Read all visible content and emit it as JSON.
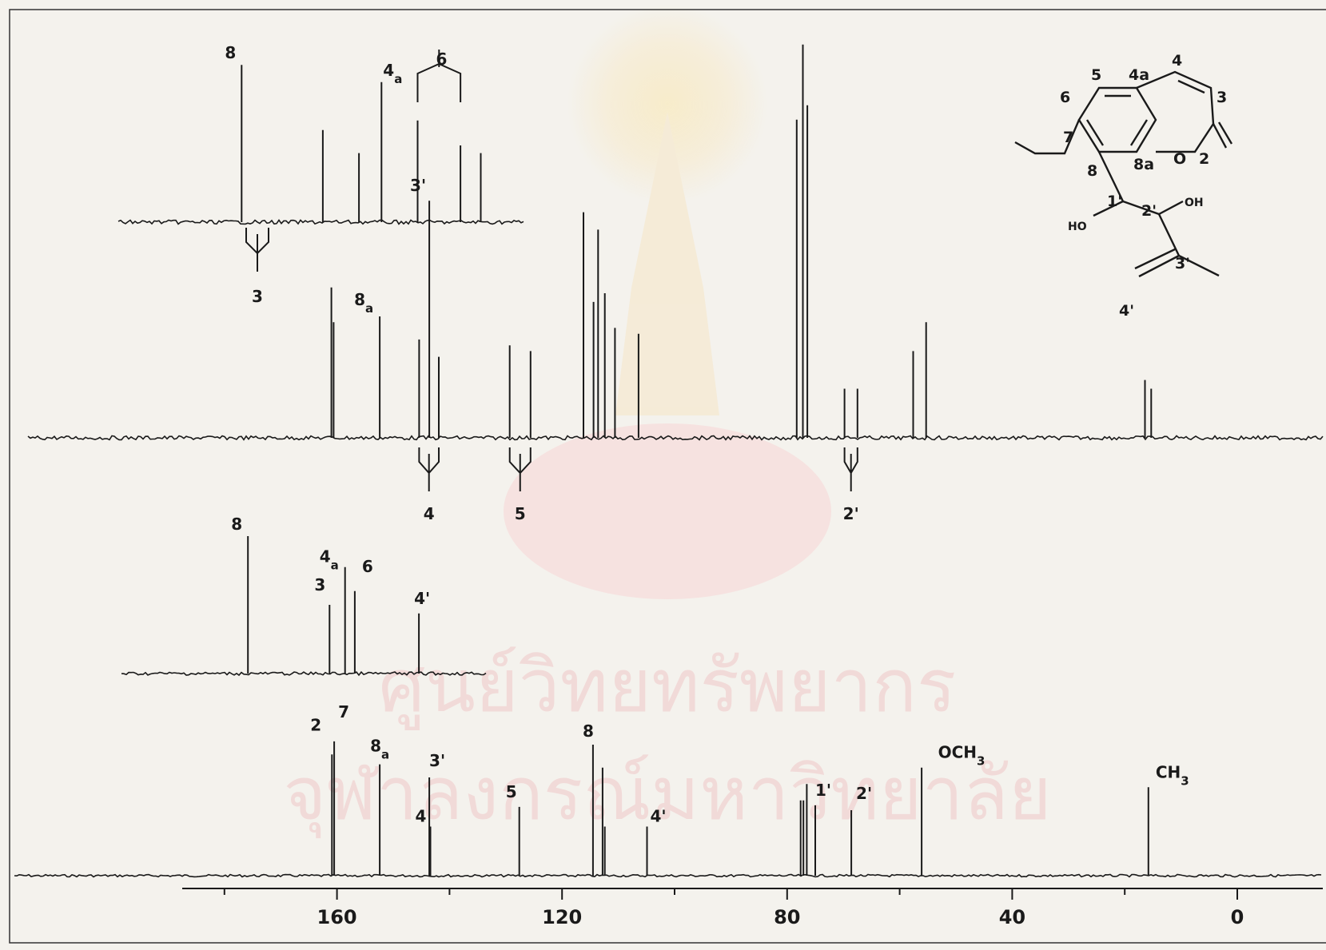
{
  "chart_data": {
    "type": "nmr-spectrum",
    "title": "",
    "xlabel": "",
    "xlim": [
      180,
      0
    ],
    "xaxis": {
      "reversed": true,
      "ticks": [
        160,
        120,
        80,
        40,
        0
      ],
      "tick_labels": [
        "160",
        "120",
        "80",
        "40",
        "0"
      ]
    },
    "watermark": {
      "line1": "ศูนย์วิทยทรัพยากร",
      "line2": "จุฬาลงกรณ์มหาวิทยาลัย"
    },
    "colors": {
      "ink": "#1a1a1a",
      "paper": "#f4f2ed",
      "watermark": "#f0c8c8"
    },
    "structure": {
      "atoms": [
        "5",
        "4a",
        "4",
        "6",
        "3",
        "7",
        "8",
        "8a",
        "2",
        "O",
        "1'",
        "2'",
        "OH",
        "HO",
        "3'",
        "4'"
      ]
    },
    "spectra": [
      {
        "name": "decoupled",
        "peaks": [
          {
            "ppm": 160.9,
            "height": 0.74,
            "label": "2"
          },
          {
            "ppm": 160.5,
            "height": 0.82,
            "label": "7"
          },
          {
            "ppm": 152.4,
            "height": 0.68,
            "label": "8a"
          },
          {
            "ppm": 143.6,
            "height": 0.6,
            "label": "3'"
          },
          {
            "ppm": 143.4,
            "height": 0.3,
            "label": "4"
          },
          {
            "ppm": 127.6,
            "height": 0.42,
            "label": "5"
          },
          {
            "ppm": 114.5,
            "height": 0.8,
            "label": "8"
          },
          {
            "ppm": 112.8,
            "height": 0.66,
            "label": ""
          },
          {
            "ppm": 112.4,
            "height": 0.3,
            "label": ""
          },
          {
            "ppm": 104.9,
            "height": 0.3,
            "label": "4'"
          },
          {
            "ppm": 77.6,
            "height": 0.46,
            "label": ""
          },
          {
            "ppm": 77.1,
            "height": 0.46,
            "label": ""
          },
          {
            "ppm": 76.5,
            "height": 0.56,
            "label": ""
          },
          {
            "ppm": 75.0,
            "height": 0.43,
            "label": "1'"
          },
          {
            "ppm": 68.6,
            "height": 0.4,
            "label": "2'"
          },
          {
            "ppm": 56.1,
            "height": 0.66,
            "label": "OCH3"
          },
          {
            "ppm": 15.8,
            "height": 0.54,
            "label": "CH3"
          }
        ]
      },
      {
        "name": "off-resonance",
        "peaks": [
          {
            "ppm": 161.0,
            "height": 0.52,
            "label": ""
          },
          {
            "ppm": 160.6,
            "height": 0.4,
            "label": ""
          },
          {
            "ppm": 152.4,
            "height": 0.42,
            "label": "8a"
          },
          {
            "ppm": 145.4,
            "height": 0.34,
            "label": ""
          },
          {
            "ppm": 143.6,
            "height": 0.82,
            "label": "3'"
          },
          {
            "ppm": 141.9,
            "height": 0.28,
            "label": ""
          },
          {
            "ppm": 129.3,
            "height": 0.32,
            "label": ""
          },
          {
            "ppm": 125.6,
            "height": 0.3,
            "label": ""
          },
          {
            "ppm": 116.2,
            "height": 0.78,
            "label": ""
          },
          {
            "ppm": 114.4,
            "height": 0.47,
            "label": ""
          },
          {
            "ppm": 113.6,
            "height": 0.72,
            "label": ""
          },
          {
            "ppm": 112.4,
            "height": 0.5,
            "label": ""
          },
          {
            "ppm": 110.6,
            "height": 0.38,
            "label": ""
          },
          {
            "ppm": 106.4,
            "height": 0.36,
            "label": ""
          },
          {
            "ppm": 78.3,
            "height": 1.1,
            "label": ""
          },
          {
            "ppm": 77.2,
            "height": 1.36,
            "label": ""
          },
          {
            "ppm": 76.4,
            "height": 1.15,
            "label": ""
          },
          {
            "ppm": 69.8,
            "height": 0.17,
            "label": ""
          },
          {
            "ppm": 67.5,
            "height": 0.17,
            "label": ""
          },
          {
            "ppm": 57.6,
            "height": 0.3,
            "label": ""
          },
          {
            "ppm": 55.3,
            "height": 0.4,
            "label": ""
          },
          {
            "ppm": 16.4,
            "height": 0.2,
            "label": ""
          },
          {
            "ppm": 15.3,
            "height": 0.17,
            "label": ""
          }
        ],
        "multiplet_labels": [
          "4",
          "5",
          "2'"
        ]
      }
    ],
    "insets": [
      {
        "name": "expansion-off-resonance",
        "x_range": [
          153,
          140
        ],
        "peaks": [
          {
            "ppm": 150.9,
            "height": 0.82,
            "label": "8"
          },
          {
            "ppm": 147.3,
            "height": 0.48,
            "label": ""
          },
          {
            "ppm": 145.7,
            "height": 0.36,
            "label": ""
          },
          {
            "ppm": 144.7,
            "height": 0.73,
            "label": "4a"
          },
          {
            "ppm": 143.1,
            "height": 0.53,
            "label": "6"
          },
          {
            "ppm": 141.2,
            "height": 0.4,
            "label": ""
          },
          {
            "ppm": 140.3,
            "height": 0.36,
            "label": ""
          }
        ],
        "multiplet_labels": [
          "3"
        ]
      },
      {
        "name": "expansion-decoupled",
        "x_range": [
          153,
          140
        ],
        "peaks": [
          {
            "ppm": 150.4,
            "height": 0.8,
            "label": "8"
          },
          {
            "ppm": 146.2,
            "height": 0.4,
            "label": "3"
          },
          {
            "ppm": 145.4,
            "height": 0.62,
            "label": "4a"
          },
          {
            "ppm": 144.9,
            "height": 0.48,
            "label": "6"
          },
          {
            "ppm": 141.6,
            "height": 0.35,
            "label": "4'"
          }
        ]
      }
    ]
  }
}
